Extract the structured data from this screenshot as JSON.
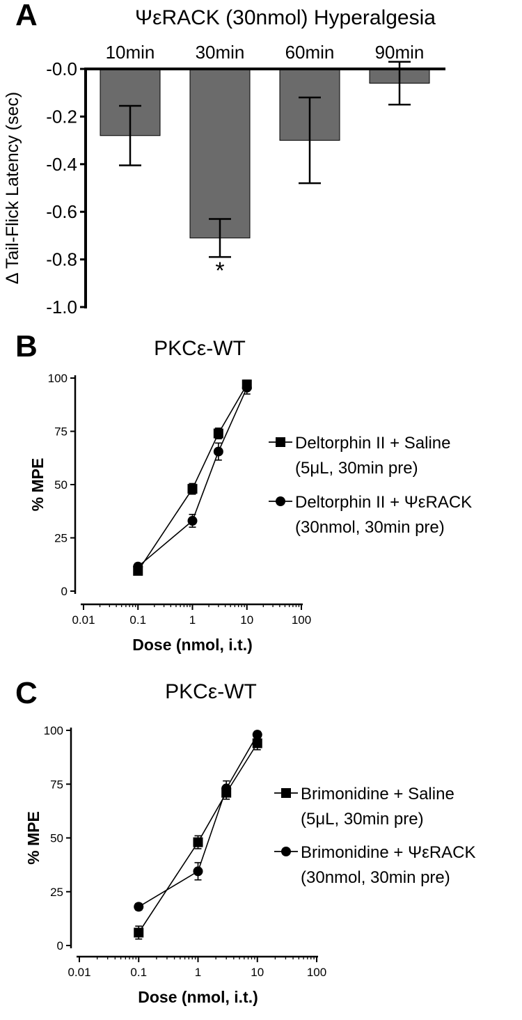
{
  "colors": {
    "bar_fill": "#6b6b6b",
    "ink": "#000000",
    "background": "#ffffff"
  },
  "chart_data": [
    {
      "id": "A",
      "panel_label": "A",
      "type": "bar",
      "title": "ΨεRACK (30nmol) Hyperalgesia",
      "ylabel": "Δ Tail-Flick Latency (sec)",
      "xlabel": "",
      "categories": [
        "10min",
        "30min",
        "60min",
        "90min"
      ],
      "values": [
        -0.28,
        -0.71,
        -0.3,
        -0.06
      ],
      "errors": [
        0.125,
        0.08,
        0.18,
        0.09
      ],
      "ylim": [
        -1.0,
        0.0
      ],
      "yticks": [
        0.0,
        -0.2,
        -0.4,
        -0.6,
        -0.8,
        -1.0
      ],
      "ytick_labels": [
        "-0.0",
        "-0.2",
        "-0.4",
        "-0.6",
        "-0.8",
        "-1.0"
      ],
      "category_labels_position": "top",
      "significance": [
        {
          "category": "30min",
          "mark": "*"
        }
      ],
      "grid": false
    },
    {
      "id": "B",
      "panel_label": "B",
      "type": "line",
      "title": "PKCε-WT",
      "xlabel": "Dose (nmol, i.t.)",
      "ylabel": "% MPE",
      "x_scale": "log",
      "xlim": [
        0.01,
        100
      ],
      "ylim": [
        0,
        100
      ],
      "xticks": [
        0.01,
        0.1,
        1,
        10,
        100
      ],
      "xtick_labels": [
        "0.01",
        "0.1",
        "1",
        "10",
        "100"
      ],
      "yticks": [
        0,
        25,
        50,
        75,
        100
      ],
      "ytick_labels": [
        "0",
        "25",
        "50",
        "75",
        "100"
      ],
      "series": [
        {
          "name": "Deltorphin II + Saline",
          "name_line2": "(5μL, 30min pre)",
          "marker": "square",
          "x": [
            0.1,
            1,
            3,
            10
          ],
          "y": [
            9.5,
            48,
            74,
            97
          ],
          "err": [
            1.5,
            2.5,
            2.5,
            2
          ]
        },
        {
          "name": "Deltorphin II +  ΨεRACK",
          "name_line2": "(30nmol, 30min pre)",
          "marker": "circle",
          "x": [
            0.1,
            1,
            3,
            10
          ],
          "y": [
            11.5,
            33,
            65.5,
            95.5
          ],
          "err": [
            1.5,
            3,
            4,
            3
          ]
        }
      ],
      "legend": "right",
      "grid": false
    },
    {
      "id": "C",
      "panel_label": "C",
      "type": "line",
      "title": "PKCε-WT",
      "xlabel": "Dose (nmol, i.t.)",
      "ylabel": "% MPE",
      "x_scale": "log",
      "xlim": [
        0.01,
        100
      ],
      "ylim": [
        0,
        100
      ],
      "xticks": [
        0.01,
        0.1,
        1,
        10,
        100
      ],
      "xtick_labels": [
        "0.01",
        "0.1",
        "1",
        "10",
        "100"
      ],
      "yticks": [
        0,
        25,
        50,
        75,
        100
      ],
      "ytick_labels": [
        "0",
        "25",
        "50",
        "75",
        "100"
      ],
      "series": [
        {
          "name": "Brimonidine + Saline",
          "name_line2": "(5μL, 30min pre)",
          "marker": "square",
          "x": [
            0.1,
            1,
            3,
            10
          ],
          "y": [
            6,
            48,
            71,
            94
          ],
          "err": [
            3,
            3,
            3,
            3
          ]
        },
        {
          "name": "Brimonidine + ΨεRACK",
          "name_line2": "(30nmol, 30min pre)",
          "marker": "circle",
          "x": [
            0.1,
            1,
            3,
            10
          ],
          "y": [
            18,
            34.5,
            73,
            98
          ],
          "err": [
            1.5,
            4,
            3.5,
            1.5
          ]
        }
      ],
      "legend": "right",
      "grid": false
    }
  ]
}
